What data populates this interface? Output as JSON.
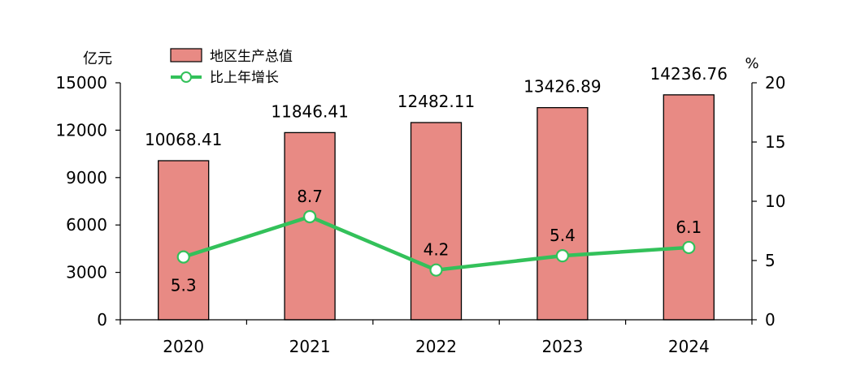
{
  "chart_data": {
    "type": "bar",
    "categories": [
      "2020",
      "2021",
      "2022",
      "2023",
      "2024"
    ],
    "series": [
      {
        "name": "地区生产总值",
        "kind": "bar",
        "axis": "left",
        "color": "#e88a84",
        "values": [
          10068.41,
          11846.41,
          12482.11,
          13426.89,
          14236.76
        ],
        "labels": [
          "10068.41",
          "11846.41",
          "12482.11",
          "13426.89",
          "14236.76"
        ]
      },
      {
        "name": "比上年增长",
        "kind": "line",
        "axis": "right",
        "color": "#33c15a",
        "values": [
          5.3,
          8.7,
          4.2,
          5.4,
          6.1
        ],
        "labels": [
          "5.3",
          "8.7",
          "4.2",
          "5.4",
          "6.1"
        ]
      }
    ],
    "y_left": {
      "unit": "亿元",
      "ylim": [
        0,
        15000
      ],
      "ticks": [
        0,
        3000,
        6000,
        9000,
        12000,
        15000
      ],
      "tick_labels": [
        "0",
        "3000",
        "6000",
        "9000",
        "12000",
        "15000"
      ]
    },
    "y_right": {
      "unit": "%",
      "ylim": [
        0,
        20
      ],
      "ticks": [
        0,
        5,
        10,
        15,
        20
      ],
      "tick_labels": [
        "0",
        "5",
        "10",
        "15",
        "20"
      ]
    },
    "grid": false,
    "legend": "top-left"
  }
}
